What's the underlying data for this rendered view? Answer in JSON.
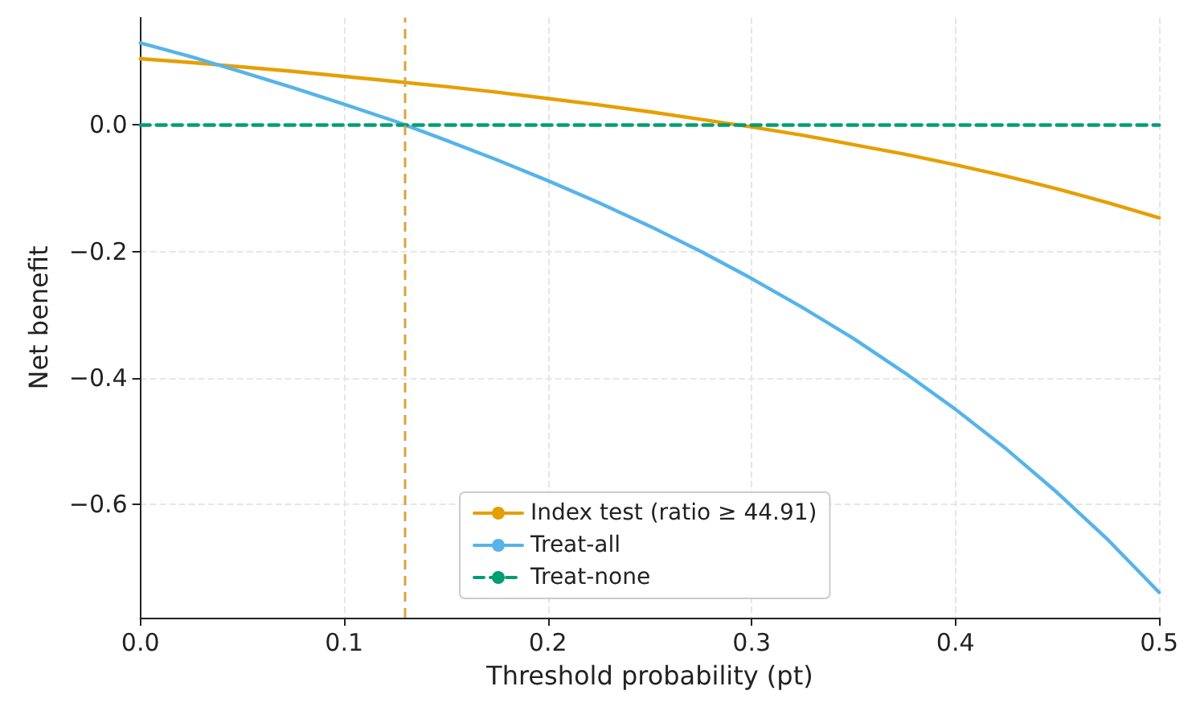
{
  "chart_data": {
    "type": "line",
    "xlabel": "Threshold probability (pt)",
    "ylabel": "Net benefit",
    "x": [
      0,
      0.025,
      0.05,
      0.075,
      0.1,
      0.125,
      0.15,
      0.175,
      0.2,
      0.225,
      0.25,
      0.275,
      0.3,
      0.325,
      0.35,
      0.375,
      0.4,
      0.425,
      0.45,
      0.475,
      0.5
    ],
    "series": [
      {
        "name": "Index test (ratio ≥ 44.91)",
        "color": "#e69f00",
        "line_style": "solid",
        "values": [
          0.105,
          0.099,
          0.092,
          0.085,
          0.077,
          0.069,
          0.061,
          0.052,
          0.042,
          0.032,
          0.021,
          0.009,
          -0.003,
          -0.016,
          -0.031,
          -0.046,
          -0.063,
          -0.081,
          -0.101,
          -0.123,
          -0.147
        ]
      },
      {
        "name": "Treat-all",
        "color": "#56b4e9",
        "line_style": "solid",
        "values": [
          0.13,
          0.108,
          0.084,
          0.059,
          0.033,
          0.006,
          -0.024,
          -0.055,
          -0.088,
          -0.123,
          -0.16,
          -0.2,
          -0.243,
          -0.289,
          -0.338,
          -0.392,
          -0.45,
          -0.513,
          -0.582,
          -0.657,
          -0.74
        ]
      },
      {
        "name": "Treat-none",
        "color": "#009e73",
        "line_style": "dashed",
        "x": [
          0,
          0.5
        ],
        "values": [
          0,
          0
        ]
      }
    ],
    "ref_lines": [
      {
        "axis": "x",
        "value": 0.13,
        "label": null,
        "color": "#d9a441",
        "line_style": "dashed"
      }
    ],
    "xlim": [
      0,
      0.5
    ],
    "xticks": [
      {
        "value": 0,
        "label": "0.0"
      },
      0.1,
      0.2,
      0.3,
      0.4,
      0.5
    ],
    "ylim": [
      -0.78,
      0.17
    ],
    "yticks": [
      {
        "value": -0.6,
        "label": "−0.6"
      },
      {
        "value": -0.4,
        "label": "−0.4"
      },
      {
        "value": -0.2,
        "label": "−0.2"
      },
      {
        "value": 0,
        "label": "0.0"
      }
    ],
    "grid": true,
    "legend": "bottom",
    "marker": "none"
  }
}
